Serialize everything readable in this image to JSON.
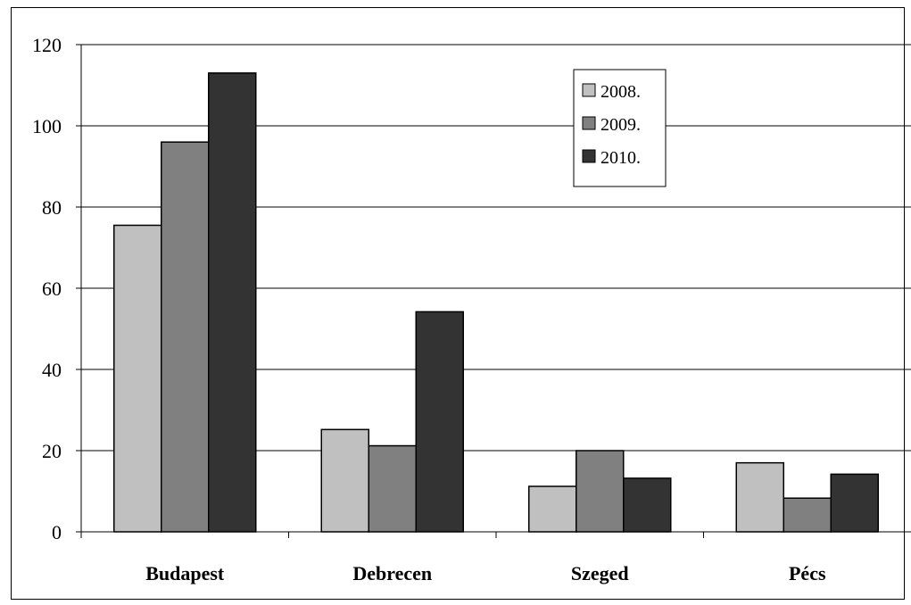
{
  "chart_data": {
    "type": "bar",
    "categories": [
      "Budapest",
      "Debrecen",
      "Szeged",
      "Pécs"
    ],
    "series": [
      {
        "name": "2008.",
        "color": "#c0c0c0",
        "values": [
          75.5,
          25.2,
          11.2,
          17.0
        ]
      },
      {
        "name": "2009.",
        "color": "#808080",
        "values": [
          96.0,
          21.2,
          20.0,
          8.3
        ]
      },
      {
        "name": "2010.",
        "color": "#333333",
        "values": [
          113.0,
          54.2,
          13.2,
          14.2
        ]
      }
    ],
    "ylim": [
      0,
      120
    ],
    "yticks": [
      "0",
      "20",
      "40",
      "60",
      "80",
      "100",
      "120"
    ],
    "grid": true,
    "legend_position": "top-right",
    "title": "",
    "xlabel": "",
    "ylabel": ""
  }
}
